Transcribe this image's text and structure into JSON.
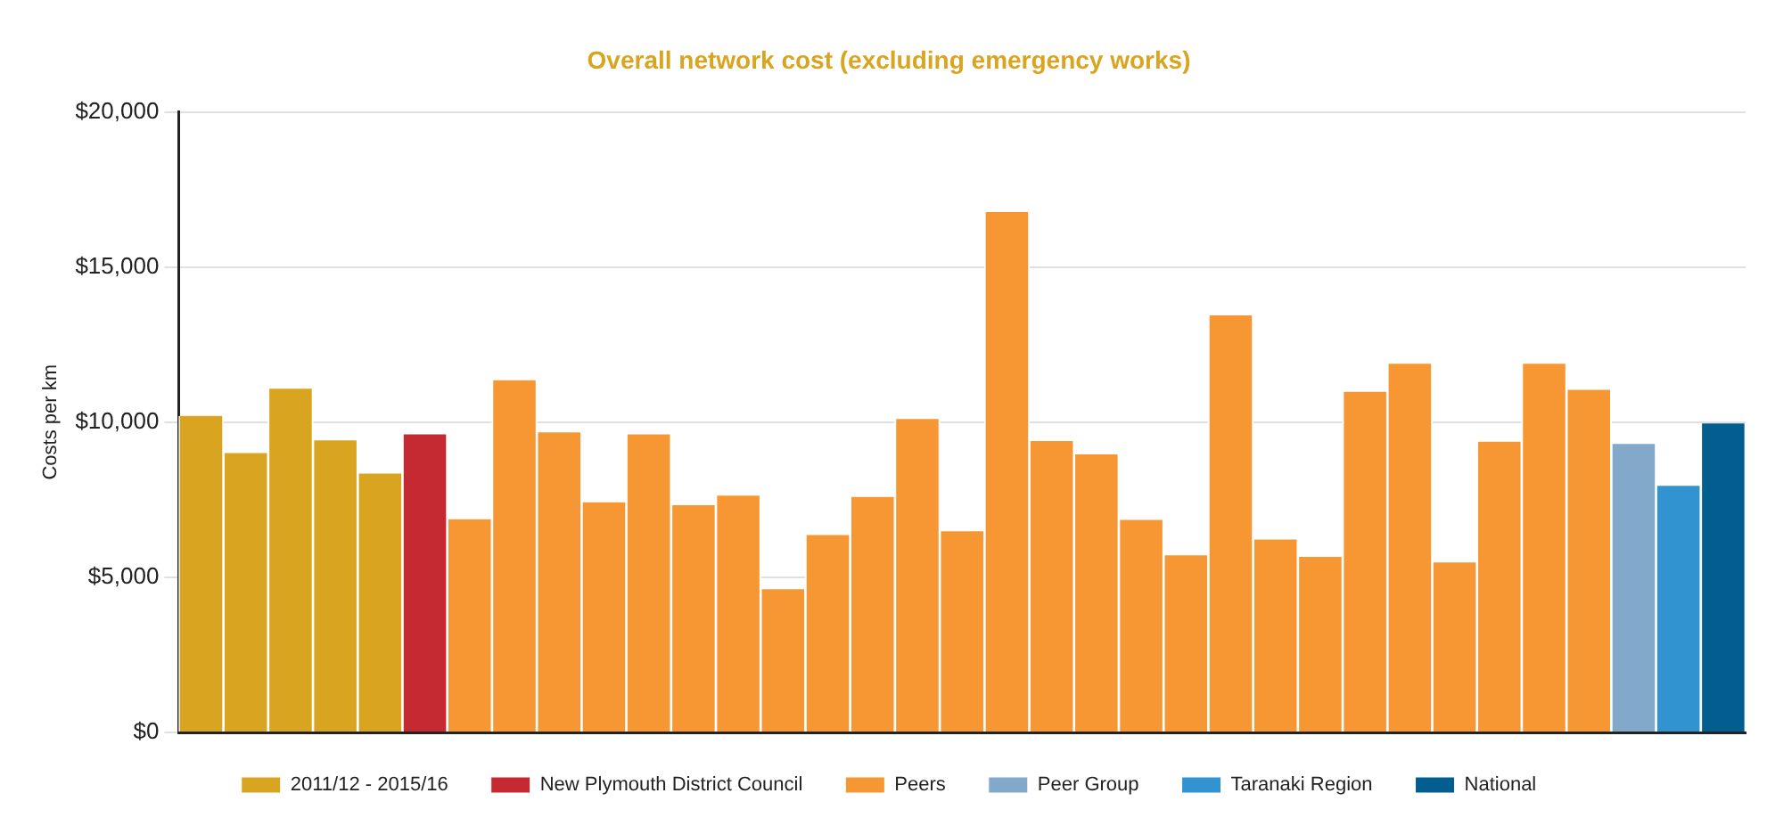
{
  "chart_data": {
    "type": "bar",
    "title": "Overall network cost (excluding emergency works)",
    "ylabel": "Costs per km",
    "categories": [
      null,
      null,
      null,
      null,
      null,
      null,
      null,
      null,
      null,
      null,
      null,
      null,
      null,
      null,
      null,
      null,
      null,
      null,
      null,
      null,
      null,
      null,
      null,
      null,
      null,
      null,
      null,
      null,
      null,
      null,
      null,
      null,
      null,
      null,
      null
    ],
    "series": [
      {
        "name": "2011/12 - 2015/16",
        "color": "#d9a521",
        "values": [
          10200,
          9000,
          11080,
          9410,
          8340,
          null,
          null,
          null,
          null,
          null,
          null,
          null,
          null,
          null,
          null,
          null,
          null,
          null,
          null,
          null,
          null,
          null,
          null,
          null,
          null,
          null,
          null,
          null,
          null,
          null,
          null,
          null,
          null,
          null,
          null
        ]
      },
      {
        "name": "New Plymouth District Council",
        "color": "#c52a33",
        "values": [
          null,
          null,
          null,
          null,
          null,
          9610,
          null,
          null,
          null,
          null,
          null,
          null,
          null,
          null,
          null,
          null,
          null,
          null,
          null,
          null,
          null,
          null,
          null,
          null,
          null,
          null,
          null,
          null,
          null,
          null,
          null,
          null,
          null,
          null,
          null
        ]
      },
      {
        "name": "Peers",
        "color": "#f79733",
        "values": [
          null,
          null,
          null,
          null,
          null,
          null,
          6870,
          11350,
          9670,
          7420,
          9610,
          7320,
          7630,
          4620,
          6360,
          7590,
          10100,
          6480,
          16770,
          9390,
          8960,
          6850,
          5710,
          13440,
          6220,
          5660,
          10980,
          11880,
          5480,
          9370,
          11880,
          11040,
          null,
          null,
          null
        ]
      },
      {
        "name": "Peer Group",
        "color": "#82a9c9",
        "values": [
          null,
          null,
          null,
          null,
          null,
          null,
          null,
          null,
          null,
          null,
          null,
          null,
          null,
          null,
          null,
          null,
          null,
          null,
          null,
          null,
          null,
          null,
          null,
          null,
          null,
          null,
          null,
          null,
          null,
          null,
          null,
          null,
          9300,
          null,
          null
        ]
      },
      {
        "name": "Taranaki Region",
        "color": "#3193d0",
        "values": [
          null,
          null,
          null,
          null,
          null,
          null,
          null,
          null,
          null,
          null,
          null,
          null,
          null,
          null,
          null,
          null,
          null,
          null,
          null,
          null,
          null,
          null,
          null,
          null,
          null,
          null,
          null,
          null,
          null,
          null,
          null,
          null,
          null,
          7950,
          null
        ]
      },
      {
        "name": "National",
        "color": "#025e8e",
        "values": [
          null,
          null,
          null,
          null,
          null,
          null,
          null,
          null,
          null,
          null,
          null,
          null,
          null,
          null,
          null,
          null,
          null,
          null,
          null,
          null,
          null,
          null,
          null,
          null,
          null,
          null,
          null,
          null,
          null,
          null,
          null,
          null,
          null,
          null,
          9960
        ]
      }
    ],
    "ylim": [
      0,
      20000
    ],
    "yticks": [
      {
        "value": 0,
        "label": "$0"
      },
      {
        "value": 5000,
        "label": "$5,000"
      },
      {
        "value": 10000,
        "label": "$10,000"
      },
      {
        "value": 15000,
        "label": "$15,000"
      },
      {
        "value": 20000,
        "label": "$20,000"
      }
    ],
    "grid": "y",
    "legend": "bottom"
  }
}
